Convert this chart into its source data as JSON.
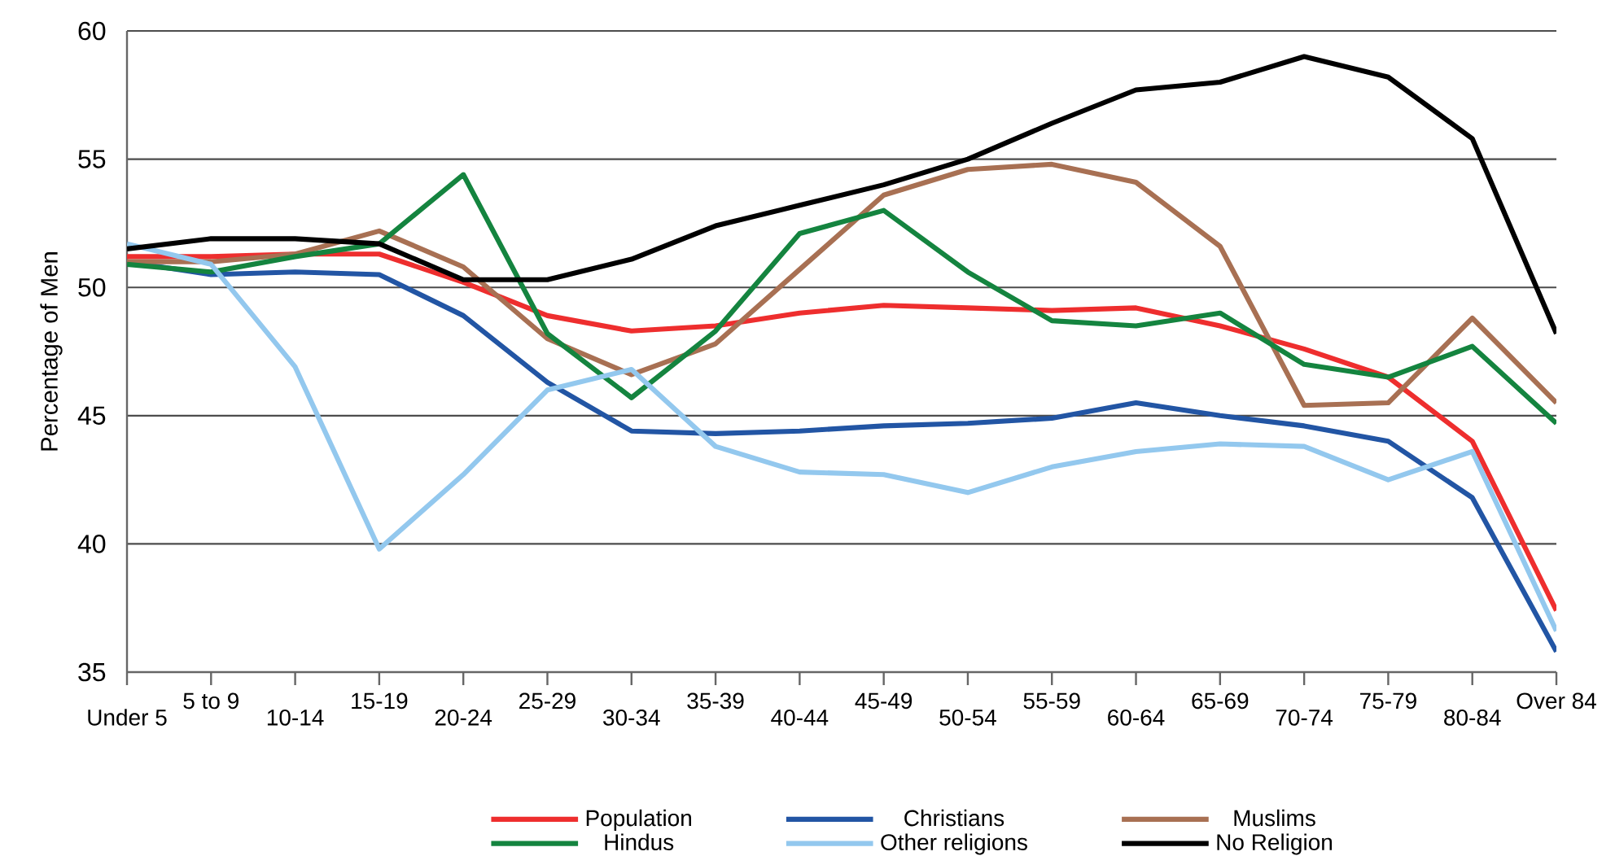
{
  "chart_data": {
    "type": "line",
    "ylabel": "Percentage of Men",
    "categories": [
      "Under 5",
      "5 to 9",
      "10-14",
      "15-19",
      "20-24",
      "25-29",
      "30-34",
      "35-39",
      "40-44",
      "45-49",
      "50-54",
      "55-59",
      "60-64",
      "65-69",
      "70-74",
      "75-79",
      "80-84",
      "Over 84"
    ],
    "series": [
      {
        "name": "Population",
        "color": "#ee2e2e",
        "values": [
          51.2,
          51.2,
          51.3,
          51.3,
          50.2,
          48.9,
          48.3,
          48.5,
          49.0,
          49.3,
          49.2,
          49.1,
          49.2,
          48.5,
          47.6,
          46.5,
          44.0,
          37.4
        ]
      },
      {
        "name": "Christians",
        "color": "#2255a4",
        "values": [
          51.0,
          50.5,
          50.6,
          50.5,
          48.9,
          46.3,
          44.4,
          44.3,
          44.4,
          44.6,
          44.7,
          44.9,
          45.5,
          45.0,
          44.6,
          44.0,
          41.8,
          35.8
        ]
      },
      {
        "name": "Muslims",
        "color": "#a87053",
        "values": [
          51.0,
          51.0,
          51.3,
          52.2,
          50.8,
          48.0,
          46.6,
          47.8,
          50.7,
          53.6,
          54.6,
          54.8,
          54.1,
          51.6,
          45.4,
          45.5,
          48.8,
          45.5
        ]
      },
      {
        "name": "Hindus",
        "color": "#14843f",
        "values": [
          50.9,
          50.6,
          51.2,
          51.7,
          54.4,
          48.2,
          45.7,
          48.3,
          52.1,
          53.0,
          50.6,
          48.7,
          48.5,
          49.0,
          47.0,
          46.5,
          47.7,
          44.7
        ]
      },
      {
        "name": "Other religions",
        "color": "#93c8ee",
        "values": [
          51.7,
          50.9,
          46.9,
          39.8,
          42.7,
          46.0,
          46.8,
          43.8,
          42.8,
          42.7,
          42.0,
          43.0,
          43.6,
          43.9,
          43.8,
          42.5,
          43.6,
          36.6
        ]
      },
      {
        "name": "No Religion",
        "color": "#000000",
        "values": [
          51.5,
          51.9,
          51.9,
          51.7,
          50.3,
          50.3,
          51.1,
          52.4,
          53.2,
          54.0,
          55.0,
          56.4,
          57.7,
          58.0,
          59.0,
          58.2,
          55.8,
          48.2
        ]
      }
    ],
    "ylim": [
      35,
      60
    ],
    "yticks": [
      35,
      40,
      45,
      50,
      55,
      60
    ],
    "grid": "y",
    "legend": "bottom"
  }
}
